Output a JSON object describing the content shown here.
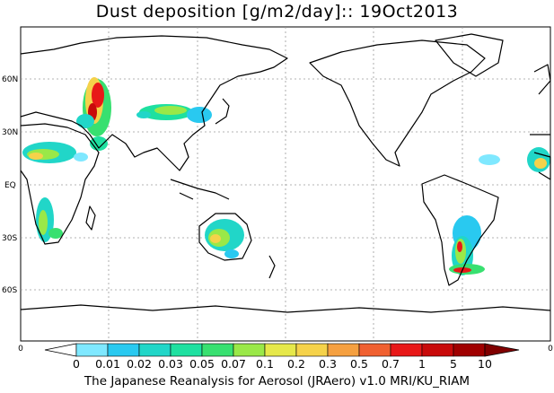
{
  "title": "Dust deposition [g/m2/day]:: 19Oct2013",
  "footer": "The Japanese Reanalysis for Aerosol (JRAero) v1.0 MRI/KU_RIAM",
  "lat_labels": [
    "60N",
    "30N",
    "EQ",
    "30S",
    "60S"
  ],
  "edge_labels": {
    "left": "0",
    "right": "0"
  },
  "colorbar": {
    "labels": [
      "0",
      "0.01",
      "0.02",
      "0.03",
      "0.05",
      "0.07",
      "0.1",
      "0.2",
      "0.3",
      "0.5",
      "0.7",
      "1",
      "5",
      "10"
    ],
    "colors": [
      "#ffffff",
      "#7fe8ff",
      "#29c9f0",
      "#21d6c8",
      "#1ee0a0",
      "#38e070",
      "#9ae848",
      "#e6e84a",
      "#f5d24a",
      "#f5a040",
      "#f06030",
      "#e81818",
      "#c80a0a",
      "#a00000"
    ],
    "under_color": "#ffffff",
    "over_color": "#800000"
  }
}
